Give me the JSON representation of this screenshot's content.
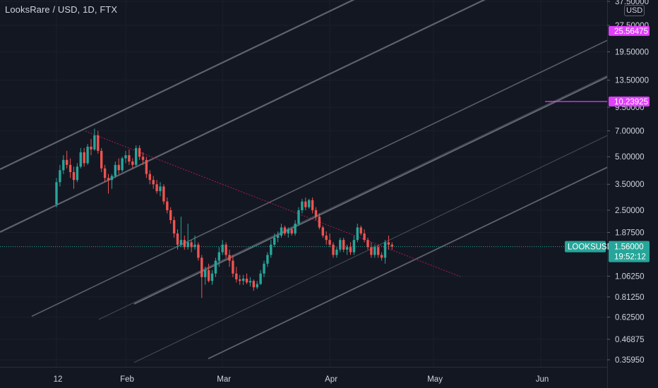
{
  "header": {
    "title": "LooksRare / USD, 1D, FTX",
    "currency": "USD"
  },
  "colors": {
    "background": "#131722",
    "up": "#26a69a",
    "down": "#ef5350",
    "channel": "#787b86",
    "magenta": "#e040fb",
    "price_line": "#26a69a"
  },
  "chart_data": {
    "type": "candlestick",
    "symbol": "LOOKSUSD",
    "y_scale": "log",
    "ylim": [
      0.33,
      40
    ],
    "y_ticks": [
      "37.50000",
      "27.50000",
      "19.50000",
      "13.50000",
      "9.50000",
      "7.00000",
      "5.00000",
      "3.50000",
      "2.50000",
      "1.87500",
      "1.06250",
      "0.81250",
      "0.62500",
      "0.46875",
      "0.35950"
    ],
    "x_ticks": [
      {
        "label": "12",
        "day": 0
      },
      {
        "label": "Feb",
        "day": 20
      },
      {
        "label": "Mar",
        "day": 48
      },
      {
        "label": "Apr",
        "day": 79
      },
      {
        "label": "May",
        "day": 109
      },
      {
        "label": "Jun",
        "day": 140
      }
    ],
    "price_tag": {
      "label": "LOOKSUSD",
      "value": "1.56000",
      "countdown": "19:52:12",
      "price": 1.56
    },
    "level_tags": [
      {
        "value": "25.56475",
        "price": 25.56
      },
      {
        "value": "10.23925",
        "price": 10.24
      }
    ],
    "candles": [
      [
        2.7,
        3.8,
        2.6,
        3.6
      ],
      [
        3.6,
        4.5,
        3.4,
        4.2
      ],
      [
        4.2,
        5.1,
        4.0,
        4.8
      ],
      [
        4.8,
        5.4,
        4.3,
        4.5
      ],
      [
        4.5,
        4.9,
        3.8,
        4.1
      ],
      [
        4.1,
        4.4,
        3.3,
        3.7
      ],
      [
        3.7,
        4.6,
        3.6,
        4.4
      ],
      [
        4.4,
        5.6,
        4.3,
        5.3
      ],
      [
        5.3,
        5.6,
        4.4,
        4.6
      ],
      [
        4.6,
        5.9,
        4.5,
        5.7
      ],
      [
        5.7,
        6.3,
        5.1,
        5.5
      ],
      [
        5.5,
        7.2,
        5.4,
        6.6
      ],
      [
        6.6,
        7.0,
        5.2,
        5.4
      ],
      [
        5.4,
        5.6,
        4.1,
        4.3
      ],
      [
        4.3,
        4.5,
        3.6,
        3.8
      ],
      [
        3.8,
        4.0,
        3.1,
        3.7
      ],
      [
        3.7,
        4.0,
        3.3,
        3.9
      ],
      [
        3.9,
        4.7,
        3.8,
        4.5
      ],
      [
        4.5,
        4.9,
        4.0,
        4.2
      ],
      [
        4.2,
        5.0,
        4.1,
        4.9
      ],
      [
        4.9,
        5.4,
        4.6,
        5.1
      ],
      [
        5.1,
        5.5,
        4.5,
        4.7
      ],
      [
        4.7,
        4.9,
        4.3,
        4.5
      ],
      [
        4.5,
        5.8,
        4.4,
        5.6
      ],
      [
        5.6,
        5.8,
        4.8,
        5.0
      ],
      [
        5.0,
        5.3,
        4.5,
        4.8
      ],
      [
        4.8,
        5.0,
        3.8,
        4.0
      ],
      [
        4.0,
        4.2,
        3.5,
        3.7
      ],
      [
        3.7,
        3.9,
        3.3,
        3.5
      ],
      [
        3.5,
        3.7,
        3.1,
        3.2
      ],
      [
        3.2,
        3.6,
        3.0,
        3.4
      ],
      [
        3.4,
        3.5,
        2.7,
        2.8
      ],
      [
        2.8,
        2.95,
        2.4,
        2.5
      ],
      [
        2.5,
        2.6,
        2.1,
        2.2
      ],
      [
        2.2,
        2.3,
        1.75,
        1.85
      ],
      [
        1.85,
        1.95,
        1.5,
        1.6
      ],
      [
        1.6,
        2.3,
        1.55,
        1.7
      ],
      [
        1.7,
        1.8,
        1.5,
        1.55
      ],
      [
        1.55,
        2.1,
        1.5,
        1.65
      ],
      [
        1.65,
        1.7,
        1.45,
        1.55
      ],
      [
        1.55,
        1.8,
        1.5,
        1.6
      ],
      [
        1.6,
        1.65,
        1.3,
        1.35
      ],
      [
        1.35,
        1.4,
        0.8,
        1.05
      ],
      [
        1.05,
        1.2,
        0.95,
        1.15
      ],
      [
        1.15,
        1.25,
        0.98,
        1.0
      ],
      [
        1.0,
        1.15,
        0.95,
        1.1
      ],
      [
        1.1,
        1.35,
        1.05,
        1.3
      ],
      [
        1.3,
        1.55,
        1.2,
        1.45
      ],
      [
        1.45,
        1.7,
        1.4,
        1.6
      ],
      [
        1.6,
        1.65,
        1.35,
        1.4
      ],
      [
        1.4,
        1.5,
        1.2,
        1.3
      ],
      [
        1.3,
        1.4,
        1.05,
        1.1
      ],
      [
        1.1,
        1.2,
        0.98,
        1.02
      ],
      [
        1.02,
        1.08,
        0.95,
        1.0
      ],
      [
        1.0,
        1.08,
        0.95,
        1.03
      ],
      [
        1.03,
        1.1,
        0.96,
        0.98
      ],
      [
        0.98,
        1.05,
        0.93,
        1.0
      ],
      [
        1.0,
        1.02,
        0.88,
        0.92
      ],
      [
        0.92,
        1.0,
        0.9,
        0.96
      ],
      [
        0.96,
        1.15,
        0.95,
        1.1
      ],
      [
        1.1,
        1.3,
        1.05,
        1.25
      ],
      [
        1.25,
        1.45,
        1.2,
        1.4
      ],
      [
        1.4,
        1.7,
        1.35,
        1.6
      ],
      [
        1.6,
        1.85,
        1.55,
        1.75
      ],
      [
        1.75,
        1.9,
        1.65,
        1.8
      ],
      [
        1.8,
        2.1,
        1.75,
        2.0
      ],
      [
        2.0,
        2.05,
        1.8,
        1.85
      ],
      [
        1.85,
        2.0,
        1.75,
        1.95
      ],
      [
        1.95,
        2.0,
        1.8,
        1.85
      ],
      [
        1.85,
        2.2,
        1.8,
        2.1
      ],
      [
        2.1,
        2.6,
        2.05,
        2.5
      ],
      [
        2.5,
        2.9,
        2.4,
        2.8
      ],
      [
        2.8,
        2.95,
        2.5,
        2.6
      ],
      [
        2.6,
        2.9,
        2.55,
        2.85
      ],
      [
        2.85,
        2.95,
        2.4,
        2.5
      ],
      [
        2.5,
        2.6,
        2.2,
        2.3
      ],
      [
        2.3,
        2.4,
        1.95,
        2.0
      ],
      [
        2.0,
        2.05,
        1.75,
        1.8
      ],
      [
        1.8,
        1.9,
        1.6,
        1.7
      ],
      [
        1.7,
        1.85,
        1.55,
        1.6
      ],
      [
        1.6,
        1.65,
        1.35,
        1.4
      ],
      [
        1.4,
        1.55,
        1.35,
        1.5
      ],
      [
        1.5,
        1.75,
        1.45,
        1.7
      ],
      [
        1.7,
        1.75,
        1.45,
        1.5
      ],
      [
        1.5,
        1.6,
        1.4,
        1.55
      ],
      [
        1.55,
        1.65,
        1.4,
        1.45
      ],
      [
        1.45,
        1.8,
        1.4,
        1.7
      ],
      [
        1.7,
        2.1,
        1.65,
        2.0
      ],
      [
        2.0,
        2.05,
        1.8,
        1.85
      ],
      [
        1.85,
        1.95,
        1.65,
        1.7
      ],
      [
        1.7,
        1.75,
        1.5,
        1.55
      ],
      [
        1.55,
        1.65,
        1.35,
        1.4
      ],
      [
        1.4,
        1.6,
        1.35,
        1.55
      ],
      [
        1.55,
        1.6,
        1.35,
        1.4
      ],
      [
        1.4,
        1.45,
        1.3,
        1.35
      ],
      [
        1.35,
        1.7,
        1.25,
        1.65
      ],
      [
        1.65,
        1.8,
        1.5,
        1.6
      ],
      [
        1.6,
        1.65,
        1.5,
        1.56
      ]
    ]
  }
}
